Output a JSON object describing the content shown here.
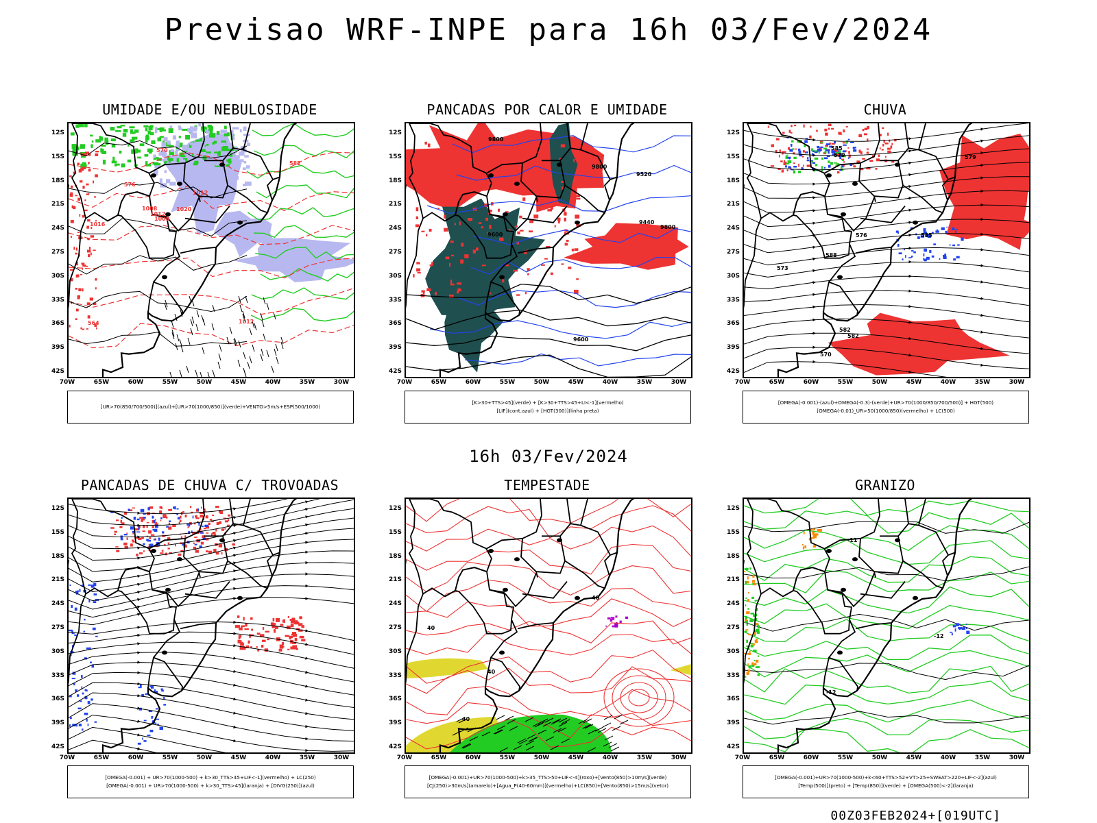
{
  "header": {
    "title": "Previsao WRF-INPE  para 16h 03/Fev/2024"
  },
  "subtitle": "16h 03/Fev/2024",
  "footer": "00Z03FEB2024+[019UTC]",
  "axes": {
    "lat_labels": [
      "12S",
      "15S",
      "18S",
      "21S",
      "24S",
      "27S",
      "30S",
      "33S",
      "36S",
      "39S",
      "42S"
    ],
    "lon_labels": [
      "70W",
      "65W",
      "60W",
      "55W",
      "50W",
      "45W",
      "40W",
      "35W",
      "30W"
    ]
  },
  "colors": {
    "green": "#22cc22",
    "red": "#ee3333",
    "blue": "#2244ee",
    "lavender": "#b8b8f0",
    "darkteal": "#1f4f4f",
    "yellow": "#e0d830",
    "orange": "#ff8800",
    "purple": "#aa00cc"
  },
  "panels": [
    {
      "title": "UMIDADE E/OU NEBULOSIDADE",
      "legend": [
        "[UR>70(850/700/500)](azul)+[UR>70(1000/850)](verde)+VENTO>5m/s+ESP(500/1000)"
      ],
      "contour_labels": [
        "1012",
        "1008",
        "1016",
        "1012",
        "1020",
        "576",
        "570",
        "582",
        "564",
        "1008",
        "1012"
      ]
    },
    {
      "title": "PANCADAS POR CALOR E UMIDADE",
      "legend": [
        "[K>30+TTS>45](verde) + [K>30+TTS>45+LI<-1](vermelho)",
        "[LIF](cont.azul) + [HGT(300)](linha preta)"
      ],
      "contour_labels": [
        "9600",
        "9800",
        "9800",
        "9520",
        "9440",
        "9600",
        "9800"
      ]
    },
    {
      "title": "CHUVA",
      "legend": [
        "[OMEGA(-0.001)-(azul)+OMEGA(-0.3)-(verde)+UR>70(1000/850/700/500)] + HGT(500)",
        "[OMEGA(-0.01)_UR>50(1000/850)(vermelho) + LC(500)"
      ],
      "contour_labels": [
        "588",
        "585",
        "582",
        "579",
        "576",
        "573",
        "570",
        "585",
        "582",
        "579"
      ]
    },
    {
      "title": "PANCADAS DE CHUVA C/ TROVOADAS",
      "legend": [
        "[OMEGA(-0.001) + UR>70(1000-500) + k>30_TTS>45+LIF<-1](vermelho) + LC(250)",
        "[OMEGA(-0.001) + UR>70(1000-500) + k>30_TTS>45](laranja) + [DIVG(250)](azul)"
      ],
      "contour_labels": []
    },
    {
      "title": "TEMPESTADE",
      "legend": [
        "[OMEGA(-0.001)+UR>70(1000-500)+k>35_TTS>50+LIF<-4](roxo)+[Vento(850)>10m/s](verde)",
        "[CJ(250)>30m/s](amarelo)+[Agua_P(40-60mm)](vermelho)+LC(850)+[Vento(850)>15m/s](vetor)"
      ],
      "contour_labels": [
        "40",
        "40",
        "40",
        "40"
      ]
    },
    {
      "title": "GRANIZO",
      "legend": [
        "[OMEGA(-0.001)+UR>70(1000-500)+k<60+TTS>52+VT>25+SWEAT>220+LIF<-2](azul)",
        "[Temp(500)](preto) + [Temp(850)](verde) + [OMEGA(500)<-2](laranja)"
      ],
      "contour_labels": [
        "-12",
        "-12",
        "-11"
      ]
    }
  ]
}
